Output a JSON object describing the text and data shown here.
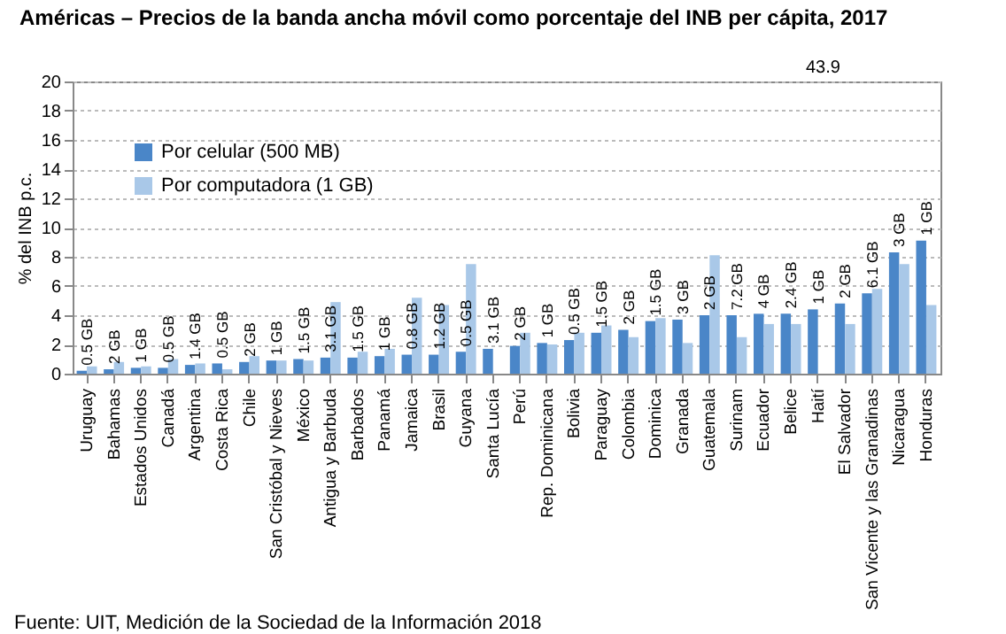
{
  "chart_data": {
    "type": "bar",
    "title": "Américas – Precios de la banda ancha móvil como porcentaje del INB per cápita, 2017",
    "ylabel": "% del INB p.c.",
    "categories": [
      "Uruguay",
      "Bahamas",
      "Estados Unidos",
      "Canadá",
      "Argentina",
      "Costa Rica",
      "Chile",
      "San Cristóbal y Nieves",
      "México",
      "Antigua y Barbuda",
      "Barbados",
      "Panamá",
      "Jamaica",
      "Brasil",
      "Guyana",
      "Santa Lucía",
      "Perú",
      "Rep. Dominicana",
      "Bolivia",
      "Paraguay",
      "Colombia",
      "Dominica",
      "Granada",
      "Guatemala",
      "Surinam",
      "Ecuador",
      "Belice",
      "Haití",
      "El Salvador",
      "San Vicente y las Granadinas",
      "Nicaragua",
      "Honduras"
    ],
    "series": [
      {
        "name": "Por celular (500 MB)",
        "color": "#4a86c8",
        "values": [
          0.2,
          0.3,
          0.4,
          0.4,
          0.6,
          0.7,
          0.8,
          0.9,
          1.0,
          1.1,
          1.1,
          1.2,
          1.3,
          1.3,
          1.5,
          1.7,
          1.9,
          2.1,
          2.3,
          2.8,
          3.0,
          3.6,
          3.7,
          4.0,
          4.0,
          4.1,
          4.1,
          4.4,
          4.8,
          5.5,
          8.3,
          9.1
        ]
      },
      {
        "name": "Por computadora (1 GB)",
        "color": "#a9c8e8",
        "values": [
          0.5,
          0.8,
          0.5,
          1.0,
          0.7,
          0.3,
          1.2,
          0.9,
          0.9,
          4.9,
          1.5,
          1.7,
          5.2,
          4.7,
          7.5,
          null,
          2.8,
          2.0,
          2.8,
          3.3,
          2.5,
          3.8,
          2.1,
          8.1,
          2.5,
          3.4,
          3.4,
          null,
          3.4,
          5.8,
          7.5,
          4.7
        ]
      }
    ],
    "annotations": [
      "0.5 GB",
      "2 GB",
      "1 GB",
      "0.5 GB",
      "1.4 GB",
      "0.5 GB",
      "2 GB",
      "1 GB",
      "1.5 GB",
      "3.1 GB",
      "1.5 GB",
      "1 GB",
      "0.8 GB",
      "1.2 GB",
      "0.5 GB",
      "3.1 GB",
      "2 GB",
      "1 GB",
      "0.5 GB",
      "1.5 GB",
      "2 GB",
      "1.5 GB",
      "3 GB",
      "2 GB",
      "7.2 GB",
      "4 GB",
      "2.4 GB",
      "1 GB",
      "2 GB",
      "6.1 GB",
      "3 GB",
      "1 GB",
      "43.9",
      "Fuente: UIT, Medición de la Sociedad de la Información 2018"
    ],
    "ylim": [
      0,
      20
    ],
    "yticks": [
      0,
      2,
      4,
      6,
      8,
      10,
      12,
      14,
      16,
      18,
      20
    ],
    "grid": "y",
    "legend": "top left"
  }
}
